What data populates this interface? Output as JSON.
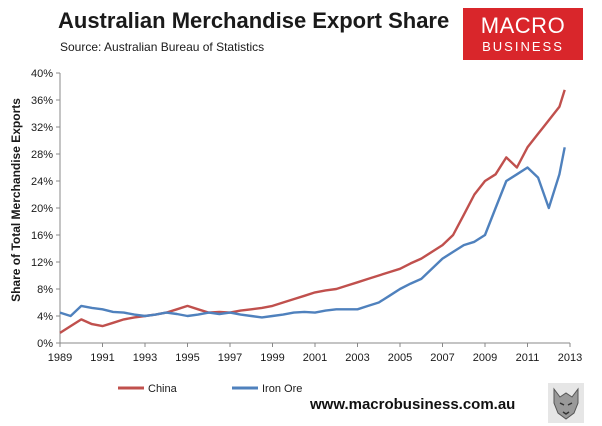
{
  "header": {
    "title": "Australian Merchandise Export Share",
    "subtitle": "Source: Australian Bureau of Statistics"
  },
  "logo": {
    "line1": "MACRO",
    "line2": "BUSINESS"
  },
  "footer": {
    "website": "www.macrobusiness.com.au"
  },
  "colors": {
    "china": "#c0504d",
    "iron_ore": "#4f81bd",
    "logo_bg": "#d9262b"
  },
  "chart_data": {
    "type": "line",
    "title": "Australian Merchandise Export Share",
    "ylabel": "Share of Total Merchandise Exports",
    "xlabel": "",
    "xlim": [
      1989,
      2013
    ],
    "ylim": [
      0,
      40
    ],
    "x_ticks": [
      "1989",
      "1991",
      "1993",
      "1995",
      "1997",
      "1999",
      "2001",
      "2003",
      "2005",
      "2007",
      "2009",
      "2011",
      "2013"
    ],
    "y_ticks": [
      "0%",
      "4%",
      "8%",
      "12%",
      "16%",
      "20%",
      "24%",
      "28%",
      "32%",
      "36%",
      "40%"
    ],
    "grid": false,
    "legend_position": "bottom-left",
    "series": [
      {
        "name": "China",
        "color": "#c0504d",
        "x": [
          1989.0,
          1989.5,
          1990.0,
          1990.5,
          1991.0,
          1991.5,
          1992.0,
          1992.5,
          1993.0,
          1993.5,
          1994.0,
          1994.5,
          1995.0,
          1995.5,
          1996.0,
          1996.5,
          1997.0,
          1997.5,
          1998.0,
          1998.5,
          1999.0,
          1999.5,
          2000.0,
          2000.5,
          2001.0,
          2001.5,
          2002.0,
          2002.5,
          2003.0,
          2003.5,
          2004.0,
          2004.5,
          2005.0,
          2005.5,
          2006.0,
          2006.5,
          2007.0,
          2007.5,
          2008.0,
          2008.5,
          2009.0,
          2009.5,
          2010.0,
          2010.5,
          2011.0,
          2011.5,
          2012.0,
          2012.5,
          2012.75
        ],
        "values": [
          1.5,
          2.5,
          3.5,
          2.8,
          2.5,
          3.0,
          3.5,
          3.8,
          4.0,
          4.2,
          4.5,
          5.0,
          5.5,
          5.0,
          4.5,
          4.6,
          4.5,
          4.8,
          5.0,
          5.2,
          5.5,
          6.0,
          6.5,
          7.0,
          7.5,
          7.8,
          8.0,
          8.5,
          9.0,
          9.5,
          10.0,
          10.5,
          11.0,
          11.8,
          12.5,
          13.5,
          14.5,
          16.0,
          19.0,
          22.0,
          24.0,
          25.0,
          27.5,
          26.0,
          29.0,
          31.0,
          33.0,
          35.0,
          37.5
        ]
      },
      {
        "name": "Iron Ore",
        "color": "#4f81bd",
        "x": [
          1989.0,
          1989.5,
          1990.0,
          1990.5,
          1991.0,
          1991.5,
          1992.0,
          1992.5,
          1993.0,
          1993.5,
          1994.0,
          1994.5,
          1995.0,
          1995.5,
          1996.0,
          1996.5,
          1997.0,
          1997.5,
          1998.0,
          1998.5,
          1999.0,
          1999.5,
          2000.0,
          2000.5,
          2001.0,
          2001.5,
          2002.0,
          2002.5,
          2003.0,
          2003.5,
          2004.0,
          2004.5,
          2005.0,
          2005.5,
          2006.0,
          2006.5,
          2007.0,
          2007.5,
          2008.0,
          2008.5,
          2009.0,
          2009.5,
          2010.0,
          2010.5,
          2011.0,
          2011.5,
          2012.0,
          2012.5,
          2012.75
        ],
        "values": [
          4.5,
          4.0,
          5.5,
          5.2,
          5.0,
          4.6,
          4.5,
          4.2,
          4.0,
          4.2,
          4.5,
          4.3,
          4.0,
          4.2,
          4.5,
          4.3,
          4.5,
          4.2,
          4.0,
          3.8,
          4.0,
          4.2,
          4.5,
          4.6,
          4.5,
          4.8,
          5.0,
          5.0,
          5.0,
          5.5,
          6.0,
          7.0,
          8.0,
          8.8,
          9.5,
          11.0,
          12.5,
          13.5,
          14.5,
          15.0,
          16.0,
          20.0,
          24.0,
          25.0,
          26.0,
          24.5,
          20.0,
          25.0,
          29.0
        ]
      }
    ]
  }
}
